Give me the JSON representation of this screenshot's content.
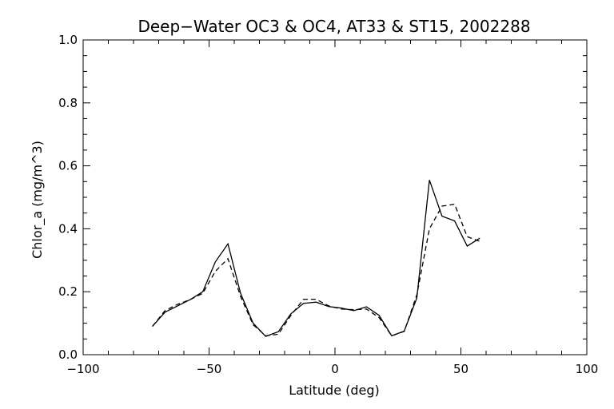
{
  "chart_data": {
    "type": "line",
    "title": "Deep−Water OC3 & OC4, AT33 & ST15, 2002288",
    "xlabel": "Latitude (deg)",
    "ylabel": "Chlor_a (mg/m^3)",
    "xlim": [
      -100,
      100
    ],
    "ylim": [
      0,
      1.0
    ],
    "xticks": [
      -100,
      -50,
      0,
      50,
      100
    ],
    "xtick_labels": [
      "−100",
      "−50",
      "0",
      "50",
      "100"
    ],
    "yticks": [
      0.0,
      0.2,
      0.4,
      0.6,
      0.8,
      1.0
    ],
    "ytick_labels": [
      "0.0",
      "0.2",
      "0.4",
      "0.6",
      "0.8",
      "1.0"
    ],
    "x_minor_step": 10,
    "y_minor_step": 0.05,
    "grid": false,
    "series": [
      {
        "style": "solid",
        "x": [
          -72.5,
          -67.5,
          -62.5,
          -57.5,
          -52.5,
          -47.5,
          -42.5,
          -37.5,
          -32.5,
          -27.5,
          -22.5,
          -17.5,
          -12.5,
          -7.5,
          -2.5,
          2.5,
          7.5,
          12.5,
          17.5,
          22.5,
          27.5,
          32.5,
          37.5,
          42.5,
          47.5,
          52.5,
          57.5
        ],
        "y": [
          0.09,
          0.135,
          0.155,
          0.175,
          0.2,
          0.295,
          0.352,
          0.195,
          0.1,
          0.058,
          0.073,
          0.13,
          0.163,
          0.167,
          0.153,
          0.148,
          0.14,
          0.152,
          0.125,
          0.06,
          0.075,
          0.18,
          0.555,
          0.44,
          0.425,
          0.345,
          0.37
        ]
      },
      {
        "style": "dashed",
        "x": [
          -72.5,
          -67.5,
          -62.5,
          -57.5,
          -52.5,
          -47.5,
          -42.5,
          -37.5,
          -32.5,
          -27.5,
          -22.5,
          -17.5,
          -12.5,
          -7.5,
          -2.5,
          2.5,
          7.5,
          12.5,
          17.5,
          22.5,
          27.5,
          32.5,
          37.5,
          42.5,
          47.5,
          52.5,
          57.5
        ],
        "y": [
          0.09,
          0.14,
          0.16,
          0.175,
          0.195,
          0.265,
          0.305,
          0.185,
          0.095,
          0.06,
          0.065,
          0.125,
          0.176,
          0.176,
          0.155,
          0.145,
          0.143,
          0.145,
          0.118,
          0.06,
          0.074,
          0.19,
          0.4,
          0.472,
          0.478,
          0.375,
          0.36
        ]
      }
    ]
  }
}
